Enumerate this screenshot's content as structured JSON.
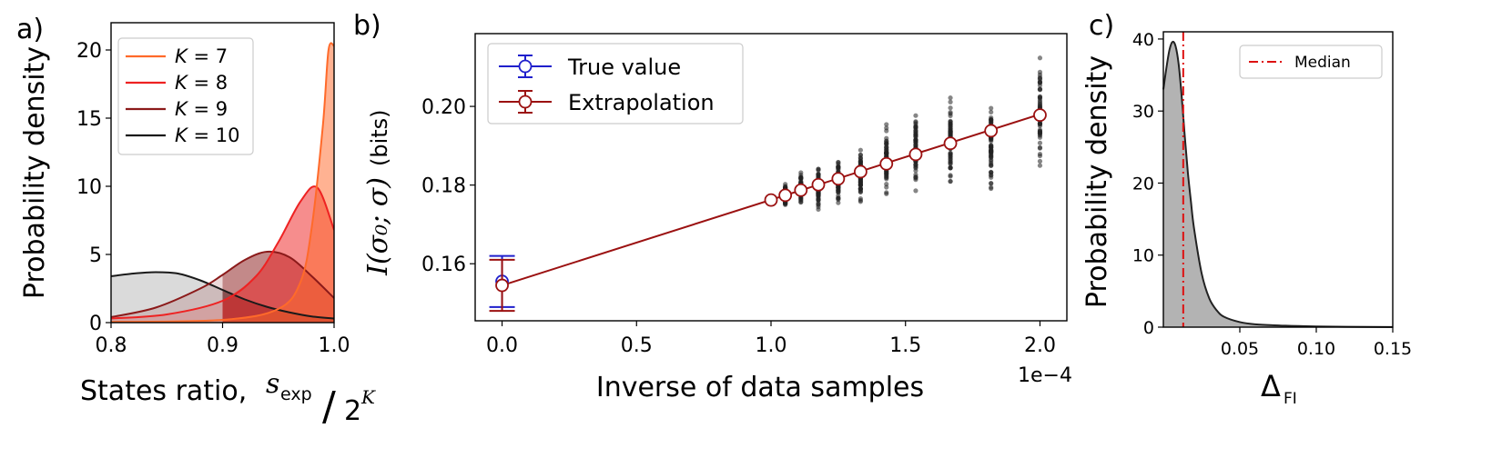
{
  "panel_labels": [
    "a)",
    "b)",
    "c)"
  ],
  "chart_data": [
    {
      "type": "area",
      "panel": "a)",
      "title": "",
      "xlabel_text": "States ratio,",
      "xlabel_math": {
        "numerator": "s",
        "subscript": "exp",
        "denominator": "2",
        "exponent": "K"
      },
      "ylabel": "Probability density",
      "xlim": [
        0.8,
        1.0
      ],
      "ylim": [
        0,
        22
      ],
      "xticks": [
        "0.8",
        "0.9",
        "1.0"
      ],
      "yticks": [
        "0",
        "5",
        "10",
        "15",
        "20"
      ],
      "xtick_values": [
        0.8,
        0.9,
        1.0
      ],
      "ytick_values": [
        0,
        5,
        10,
        15,
        20
      ],
      "shade_from": 0.9,
      "legend_position": "upper-left",
      "series": [
        {
          "name": "K = 10",
          "color": "#1a1a1a",
          "x": [
            0.8,
            0.82,
            0.84,
            0.86,
            0.88,
            0.9,
            0.92,
            0.94,
            0.96,
            0.98,
            1.0
          ],
          "y": [
            3.4,
            3.6,
            3.7,
            3.6,
            3.1,
            2.4,
            1.7,
            1.15,
            0.75,
            0.45,
            0.3
          ]
        },
        {
          "name": "K = 9",
          "color": "#8b1a1a",
          "x": [
            0.8,
            0.84,
            0.88,
            0.9,
            0.92,
            0.94,
            0.96,
            0.98,
            1.0
          ],
          "y": [
            0.4,
            1.1,
            2.5,
            3.5,
            4.6,
            5.2,
            4.8,
            3.4,
            1.8
          ]
        },
        {
          "name": "K = 8",
          "color": "#ee2222",
          "x": [
            0.8,
            0.85,
            0.9,
            0.93,
            0.95,
            0.97,
            0.985,
            1.0
          ],
          "y": [
            0.3,
            0.6,
            1.6,
            3.4,
            5.9,
            8.9,
            9.9,
            6.8
          ]
        },
        {
          "name": "K = 7",
          "color": "#ff6a2a",
          "x": [
            0.8,
            0.9,
            0.95,
            0.97,
            0.98,
            0.99,
            0.995,
            1.0
          ],
          "y": [
            0.05,
            0.2,
            1.0,
            3.0,
            7.0,
            14.5,
            20.0,
            20.3
          ]
        }
      ]
    },
    {
      "type": "scatter",
      "panel": "b)",
      "xlabel": "Inverse of data samples",
      "ylabel_math": "I(σ₀; σ)",
      "ylabel_unit": "(bits)",
      "xlim": [
        -0.1,
        2.1
      ],
      "ylim": [
        0.1455,
        0.2185
      ],
      "xticks": [
        "0.0",
        "0.5",
        "1.0",
        "1.5",
        "2.0"
      ],
      "yticks": [
        "0.16",
        "0.18",
        "0.20"
      ],
      "xtick_values": [
        0.0,
        0.5,
        1.0,
        1.5,
        2.0
      ],
      "ytick_values": [
        0.16,
        0.18,
        0.2
      ],
      "x_offset_label": "1e−4",
      "legend": [
        "True value",
        "Extrapolation"
      ],
      "legend_colors": [
        "#1f1fcc",
        "#9b1111"
      ],
      "true_value": {
        "x": 0.0,
        "y": 0.1555,
        "err": 0.0065
      },
      "extrapolation_point": {
        "x": 0.0,
        "y": 0.1545,
        "err": 0.0065
      },
      "line": {
        "x": [
          0.0,
          2.0
        ],
        "y": [
          0.1545,
          0.198
        ]
      },
      "sample_points": {
        "x": [
          1.0,
          1.053,
          1.111,
          1.176,
          1.25,
          1.333,
          1.429,
          1.538,
          1.667,
          1.818,
          2.0
        ],
        "y": [
          0.1762,
          0.1774,
          0.1787,
          0.1801,
          0.1816,
          0.1834,
          0.1854,
          0.1878,
          0.1906,
          0.1938,
          0.1978
        ],
        "scatter_low": [
          0.1755,
          0.1745,
          0.174,
          0.1735,
          0.1738,
          0.175,
          0.1765,
          0.1785,
          0.18,
          0.177,
          0.181
        ],
        "scatter_high": [
          0.177,
          0.1805,
          0.1835,
          0.1855,
          0.188,
          0.191,
          0.1955,
          0.2005,
          0.2025,
          0.2025,
          0.2145
        ]
      }
    },
    {
      "type": "area",
      "panel": "c)",
      "xlabel_math": {
        "symbol": "Δ",
        "subscript": "FI"
      },
      "ylabel": "Probability density",
      "xlim": [
        0.0,
        0.15
      ],
      "ylim": [
        0,
        41
      ],
      "xticks": [
        "0.05",
        "0.10",
        "0.15"
      ],
      "yticks": [
        "0",
        "10",
        "20",
        "30",
        "40"
      ],
      "xtick_values": [
        0.05,
        0.1,
        0.15
      ],
      "ytick_values": [
        0,
        10,
        20,
        30,
        40
      ],
      "legend": [
        "Median"
      ],
      "median": 0.013,
      "median_color": "#dd1111",
      "fill_color": "#b3b3b3",
      "x": [
        0.0,
        0.002,
        0.004,
        0.006,
        0.008,
        0.01,
        0.012,
        0.014,
        0.016,
        0.018,
        0.02,
        0.025,
        0.03,
        0.035,
        0.04,
        0.05,
        0.06,
        0.08,
        0.1,
        0.12,
        0.15
      ],
      "y": [
        33.0,
        36.0,
        38.5,
        39.6,
        39.0,
        36.5,
        32.0,
        26.5,
        21.5,
        17.5,
        13.8,
        7.5,
        4.0,
        2.3,
        1.4,
        0.7,
        0.4,
        0.2,
        0.1,
        0.05,
        0.02
      ]
    }
  ]
}
